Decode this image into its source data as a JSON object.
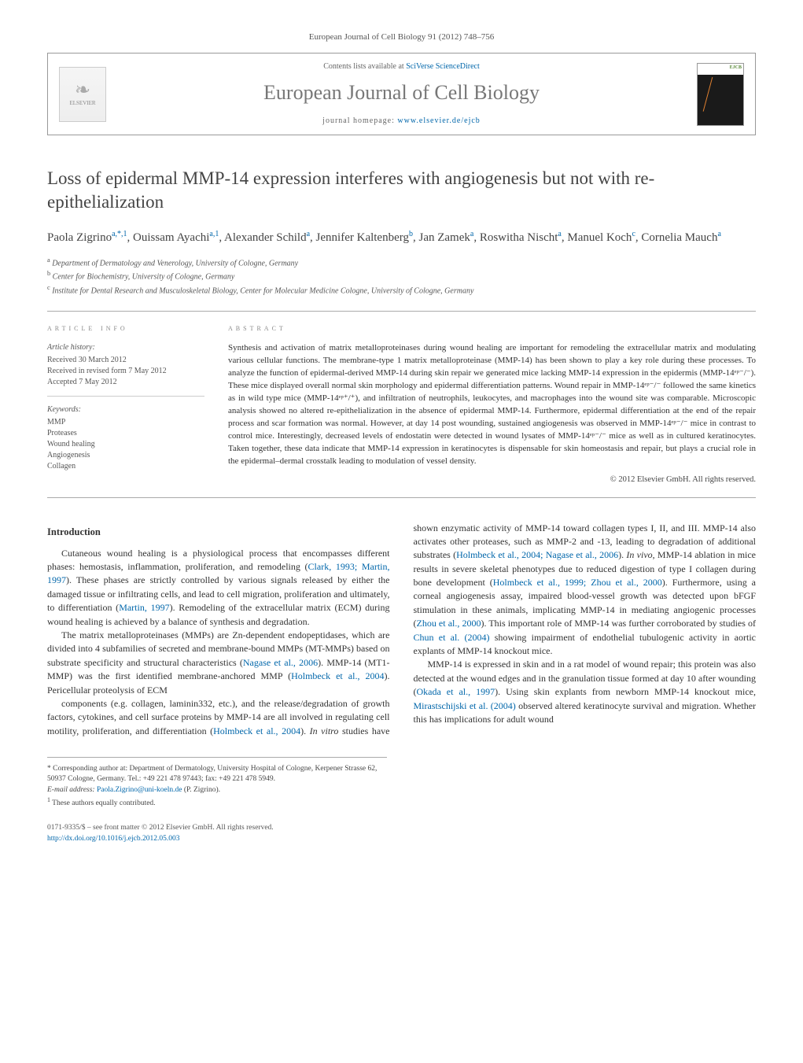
{
  "journal_ref": "European Journal of Cell Biology 91 (2012) 748–756",
  "header": {
    "contents_prefix": "Contents lists available at ",
    "contents_link": "SciVerse ScienceDirect",
    "journal_name": "European Journal of Cell Biology",
    "homepage_prefix": "journal homepage: ",
    "homepage_link": "www.elsevier.de/ejcb",
    "elsevier_label": "ELSEVIER",
    "cover_label": "EJCB"
  },
  "title": "Loss of epidermal MMP-14 expression interferes with angiogenesis but not with re-epithelialization",
  "authors_html": "Paola Zigrino<sup>a,*,1</sup>, Ouissam Ayachi<sup>a,1</sup>, Alexander Schild<sup>a</sup>, Jennifer Kaltenberg<sup>b</sup>, Jan Zamek<sup>a</sup>, Roswitha Nischt<sup>a</sup>, Manuel Koch<sup>c</sup>, Cornelia Mauch<sup>a</sup>",
  "affiliations": [
    "a Department of Dermatology and Venerology, University of Cologne, Germany",
    "b Center for Biochemistry, University of Cologne, Germany",
    "c Institute for Dental Research and Musculoskeletal Biology, Center for Molecular Medicine Cologne, University of Cologne, Germany"
  ],
  "info": {
    "heading": "article info",
    "history_label": "Article history:",
    "history": [
      "Received 30 March 2012",
      "Received in revised form 7 May 2012",
      "Accepted 7 May 2012"
    ],
    "keywords_label": "Keywords:",
    "keywords": [
      "MMP",
      "Proteases",
      "Wound healing",
      "Angiogenesis",
      "Collagen"
    ]
  },
  "abstract": {
    "heading": "abstract",
    "text": "Synthesis and activation of matrix metalloproteinases during wound healing are important for remodeling the extracellular matrix and modulating various cellular functions. The membrane-type 1 matrix metalloproteinase (MMP-14) has been shown to play a key role during these processes. To analyze the function of epidermal-derived MMP-14 during skin repair we generated mice lacking MMP-14 expression in the epidermis (MMP-14ᵉᵖ⁻/⁻). These mice displayed overall normal skin morphology and epidermal differentiation patterns. Wound repair in MMP-14ᵉᵖ⁻/⁻ followed the same kinetics as in wild type mice (MMP-14ᵉᵖ⁺/⁺), and infiltration of neutrophils, leukocytes, and macrophages into the wound site was comparable. Microscopic analysis showed no altered re-epithelialization in the absence of epidermal MMP-14. Furthermore, epidermal differentiation at the end of the repair process and scar formation was normal. However, at day 14 post wounding, sustained angiogenesis was observed in MMP-14ᵉᵖ⁻/⁻ mice in contrast to control mice. Interestingly, decreased levels of endostatin were detected in wound lysates of MMP-14ᵉᵖ⁻/⁻ mice as well as in cultured keratinocytes. Taken together, these data indicate that MMP-14 expression in keratinocytes is dispensable for skin homeostasis and repair, but plays a crucial role in the epidermal–dermal crosstalk leading to modulation of vessel density.",
    "copyright": "© 2012 Elsevier GmbH. All rights reserved."
  },
  "body": {
    "intro_heading": "Introduction",
    "p1": "Cutaneous wound healing is a physiological process that encompasses different phases: hemostasis, inflammation, proliferation, and remodeling (Clark, 1993; Martin, 1997). These phases are strictly controlled by various signals released by either the damaged tissue or infiltrating cells, and lead to cell migration, proliferation and ultimately, to differentiation (Martin, 1997). Remodeling of the extracellular matrix (ECM) during wound healing is achieved by a balance of synthesis and degradation.",
    "p2": "The matrix metalloproteinases (MMPs) are Zn-dependent endopeptidases, which are divided into 4 subfamilies of secreted and membrane-bound MMPs (MT-MMPs) based on substrate specificity and structural characteristics (Nagase et al., 2006). MMP-14 (MT1-MMP) was the first identified membrane-anchored MMP (Holmbeck et al., 2004). Pericellular proteolysis of ECM",
    "p3": "components (e.g. collagen, laminin332, etc.), and the release/degradation of growth factors, cytokines, and cell surface proteins by MMP-14 are all involved in regulating cell motility, proliferation, and differentiation (Holmbeck et al., 2004). In vitro studies have shown enzymatic activity of MMP-14 toward collagen types I, II, and III. MMP-14 also activates other proteases, such as MMP-2 and -13, leading to degradation of additional substrates (Holmbeck et al., 2004; Nagase et al., 2006). In vivo, MMP-14 ablation in mice results in severe skeletal phenotypes due to reduced digestion of type I collagen during bone development (Holmbeck et al., 1999; Zhou et al., 2000). Furthermore, using a corneal angiogenesis assay, impaired blood-vessel growth was detected upon bFGF stimulation in these animals, implicating MMP-14 in mediating angiogenic processes (Zhou et al., 2000). This important role of MMP-14 was further corroborated by studies of Chun et al. (2004) showing impairment of endothelial tubulogenic activity in aortic explants of MMP-14 knockout mice.",
    "p4": "MMP-14 is expressed in skin and in a rat model of wound repair; this protein was also detected at the wound edges and in the granulation tissue formed at day 10 after wounding (Okada et al., 1997). Using skin explants from newborn MMP-14 knockout mice, Mirastschijski et al. (2004) observed altered keratinocyte survival and migration. Whether this has implications for adult wound"
  },
  "footnotes": {
    "corresponding": "* Corresponding author at: Department of Dermatology, University Hospital of Cologne, Kerpener Strasse 62, 50937 Cologne, Germany. Tel.: +49 221 478 97443; fax: +49 221 478 5949.",
    "email_label": "E-mail address: ",
    "email": "Paola.Zigrino@uni-koeln.de",
    "email_suffix": " (P. Zigrino).",
    "equal": "1 These authors equally contributed."
  },
  "bottom": {
    "issn": "0171-9335/$ – see front matter © 2012 Elsevier GmbH. All rights reserved.",
    "doi": "http://dx.doi.org/10.1016/j.ejcb.2012.05.003"
  }
}
